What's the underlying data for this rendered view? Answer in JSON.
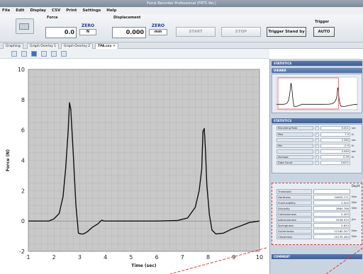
{
  "window": {
    "title": "Force Recorder Professional (FRTS Ver.)"
  },
  "menu": [
    "File",
    "Edit",
    "Display",
    "CSV",
    "Print",
    "Settings",
    "Help"
  ],
  "toolbar": {
    "force_label": "Force",
    "force_value": "0.0",
    "force_zero": "ZERO",
    "force_unit": "N",
    "disp_label": "Displacement",
    "disp_value": "0.000",
    "disp_zero": "ZERO",
    "disp_unit": "mm",
    "start": "START",
    "stop": "STOP",
    "trigger_standby": "Trigger Stand by",
    "trigger_label": "Trigger",
    "trigger_mode": "AUTO"
  },
  "tabs": [
    "Graphing",
    "Graph Overlay 1",
    "Graph Overlay 2",
    "TPA.csv"
  ],
  "chart_data": {
    "type": "line",
    "xlabel": "Time (sec)",
    "ylabel": "Force (N)",
    "xlim": [
      1,
      10
    ],
    "ylim": [
      -2,
      10
    ],
    "xticks": [
      1,
      2,
      3,
      4,
      5,
      6,
      7,
      8,
      9,
      10
    ],
    "yticks": [
      -2,
      0,
      2,
      4,
      6,
      8,
      10
    ],
    "grid": true,
    "series": [
      {
        "x": [
          1.0,
          1.8,
          2.0,
          2.2,
          2.35,
          2.45,
          2.55,
          2.6,
          2.65,
          2.75,
          2.85,
          2.95,
          3.05,
          3.15,
          3.3,
          3.5,
          3.7,
          3.85,
          3.95,
          4.1,
          4.4,
          5,
          6,
          6.8,
          7.2,
          7.5,
          7.65,
          7.75,
          7.8,
          7.85,
          7.9,
          7.95,
          8.05,
          8.15,
          8.3,
          8.6,
          8.9,
          9.3,
          9.6,
          10
        ],
        "y": [
          0.0,
          0.0,
          0.15,
          0.5,
          1.6,
          3.4,
          5.9,
          7.8,
          7.4,
          4.4,
          1.1,
          -0.8,
          -0.85,
          -0.85,
          -0.7,
          -0.4,
          -0.2,
          0.05,
          0.0,
          0.0,
          0.0,
          0.0,
          0.0,
          0.03,
          0.2,
          0.9,
          2.0,
          3.4,
          5.9,
          6.1,
          4.6,
          2.4,
          0.4,
          -0.6,
          -0.85,
          -0.8,
          -0.55,
          -0.3,
          -0.1,
          0.0
        ]
      }
    ]
  },
  "sections": {
    "viewer": "VIEWER",
    "statistics": "STATISTICS",
    "comment": "COMMENT"
  },
  "stats": [
    {
      "label": "Recording Rate",
      "tag": "T",
      "value": "0.001",
      "unit": "sec"
    },
    {
      "label": "Max",
      "tag": "F",
      "value": "7.9",
      "unit": "N"
    },
    {
      "label": "",
      "tag": "T",
      "value": "2.560",
      "unit": "sec"
    },
    {
      "label": "Min",
      "tag": "F",
      "value": "-0.9",
      "unit": "N"
    },
    {
      "label": "",
      "tag": "T",
      "value": "2.949",
      "unit": "sec"
    },
    {
      "label": "Average",
      "tag": "F",
      "value": "0.39",
      "unit": "N"
    },
    {
      "label": "Data Count",
      "tag": "T",
      "value": "10001",
      "unit": ""
    }
  ],
  "tpa": {
    "header": "Depth",
    "rows": [
      {
        "label": "Threshold",
        "value": "",
        "unit": ""
      },
      {
        "label": "Hardness",
        "value": "24655.171",
        "unit": "N/m"
      },
      {
        "label": "Fracturability",
        "value": "0.000",
        "unit": "N/m"
      },
      {
        "label": "Viscosity",
        "value": "2864.766",
        "unit": "N/m"
      },
      {
        "label": "Cohesiveness",
        "value": "0.493",
        "unit": ""
      },
      {
        "label": "Adhesiveness",
        "value": "3456.915",
        "unit": "J/m"
      },
      {
        "label": "Springiness",
        "value": "0.833",
        "unit": ""
      },
      {
        "label": "Gumminess",
        "value": "12160.207",
        "unit": "N/m"
      },
      {
        "label": "Chewiness",
        "value": "10135.464",
        "unit": "N/m"
      }
    ]
  }
}
